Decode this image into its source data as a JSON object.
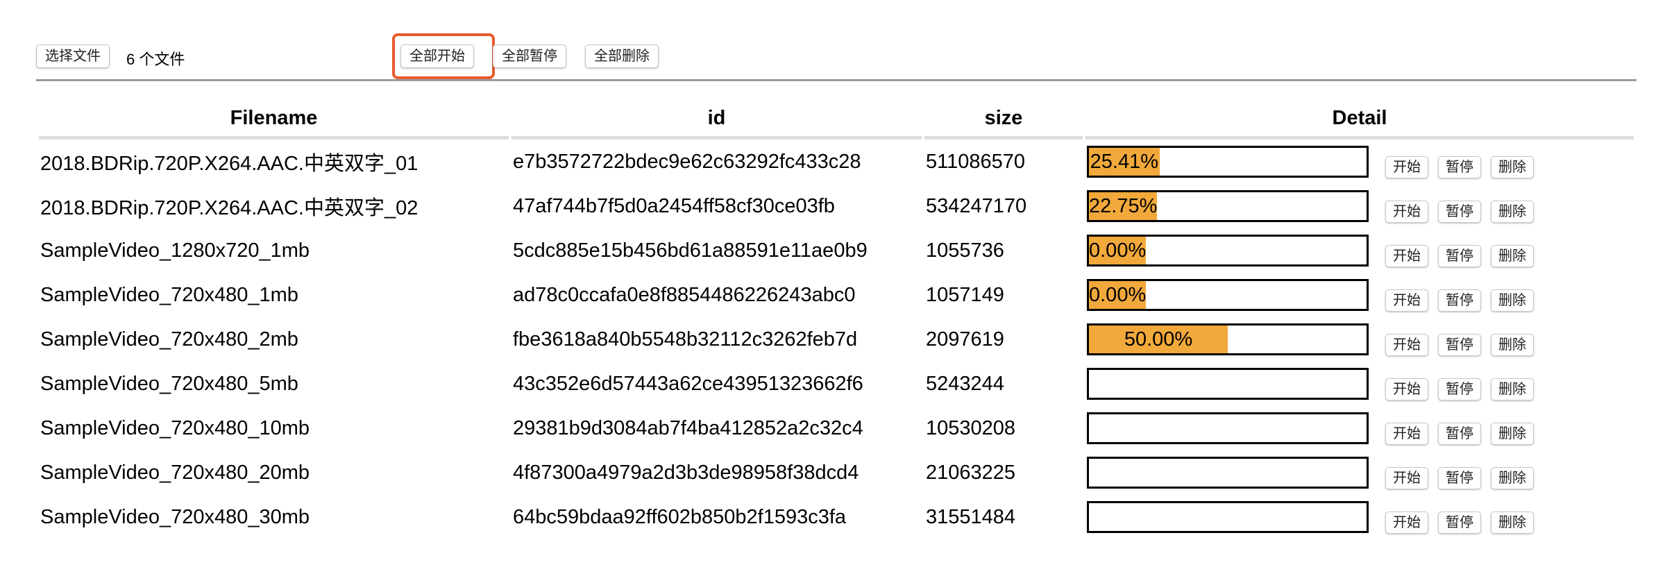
{
  "toolbar": {
    "choose_file_label": "选择文件",
    "file_count": "6 个文件",
    "start_all_label": "全部开始",
    "pause_all_label": "全部暂停",
    "delete_all_label": "全部删除"
  },
  "highlight_color": "#e85a2e",
  "progress_color": "#f2a93b",
  "table": {
    "headers": [
      "Filename",
      "id",
      "size",
      "Detail"
    ],
    "row_actions": {
      "start": "开始",
      "pause": "暂停",
      "delete": "删除"
    },
    "rows": [
      {
        "filename": "2018.BDRip.720P.X264.AAC.中英双字_01",
        "id": "e7b3572722bdec9e62c63292fc433c28",
        "size": "511086570",
        "progress": 25.41,
        "progress_label": "25.41%"
      },
      {
        "filename": "2018.BDRip.720P.X264.AAC.中英双字_02",
        "id": "47af744b7f5d0a2454ff58cf30ce03fb",
        "size": "534247170",
        "progress": 22.75,
        "progress_label": "22.75%"
      },
      {
        "filename": "SampleVideo_1280x720_1mb",
        "id": "5cdc885e15b456bd61a88591e11ae0b9",
        "size": "1055736",
        "progress": 0,
        "progress_label": "0.00%"
      },
      {
        "filename": "SampleVideo_720x480_1mb",
        "id": "ad78c0ccafa0e8f8854486226243abc0",
        "size": "1057149",
        "progress": 0,
        "progress_label": "0.00%"
      },
      {
        "filename": "SampleVideo_720x480_2mb",
        "id": "fbe3618a840b5548b32112c3262feb7d",
        "size": "2097619",
        "progress": 50,
        "progress_label": "50.00%"
      },
      {
        "filename": "SampleVideo_720x480_5mb",
        "id": "43c352e6d57443a62ce43951323662f6",
        "size": "5243244",
        "progress": null,
        "progress_label": null
      },
      {
        "filename": "SampleVideo_720x480_10mb",
        "id": "29381b9d3084ab7f4ba412852a2c32c4",
        "size": "10530208",
        "progress": null,
        "progress_label": null
      },
      {
        "filename": "SampleVideo_720x480_20mb",
        "id": "4f87300a4979a2d3b3de98958f38dcd4",
        "size": "21063225",
        "progress": null,
        "progress_label": null
      },
      {
        "filename": "SampleVideo_720x480_30mb",
        "id": "64bc59bdaa92ff602b850b2f1593c3fa",
        "size": "31551484",
        "progress": null,
        "progress_label": null
      }
    ]
  }
}
